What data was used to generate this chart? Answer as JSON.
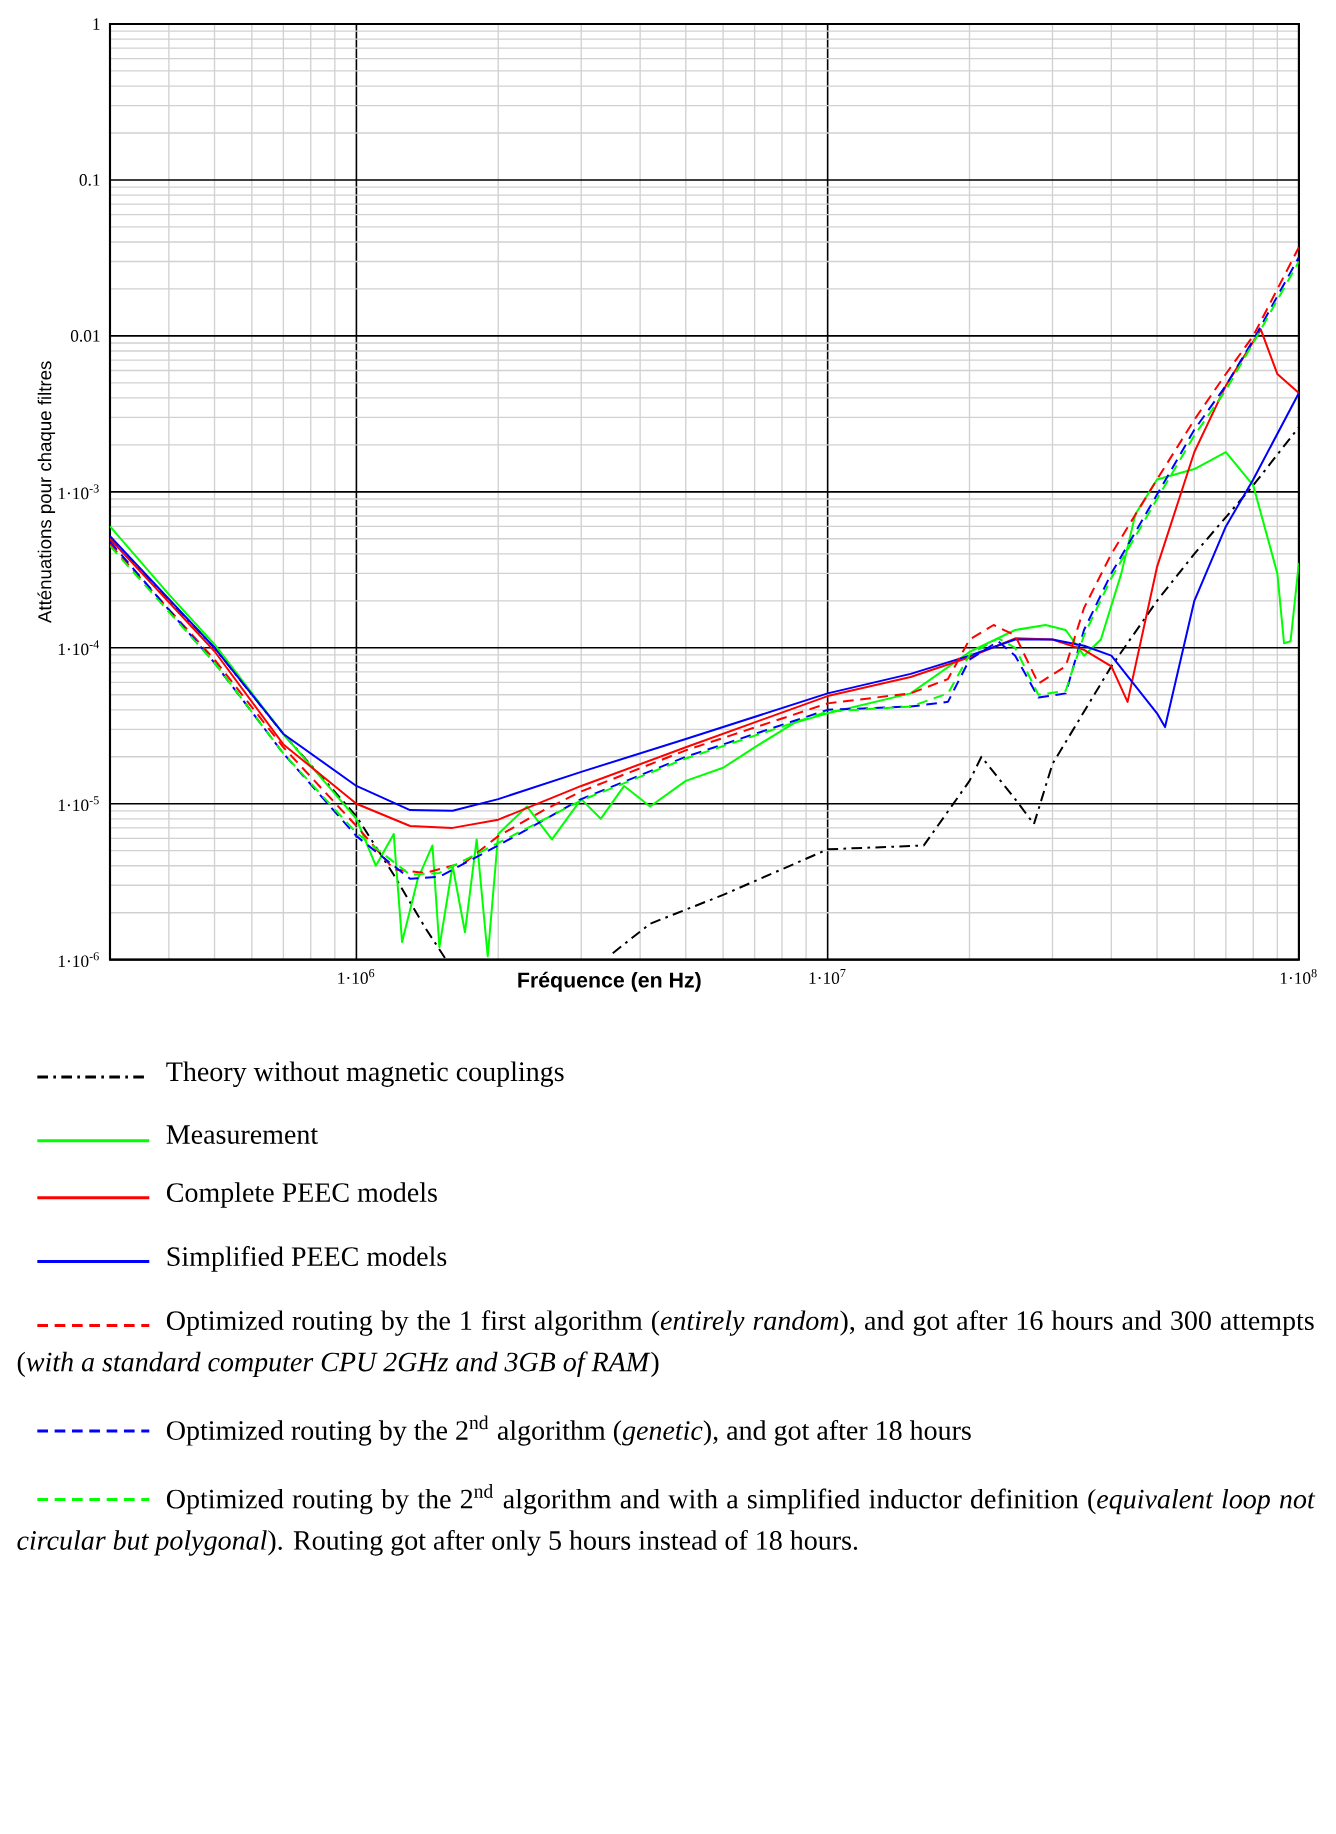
{
  "chart_data": {
    "type": "line",
    "xlabel": "Fréquence (en Hz)",
    "ylabel": "Atténuations pour chaque filtres",
    "log": "xy",
    "grid": true,
    "legend": "bottom",
    "xlim": [
      300000,
      100000000
    ],
    "ylim": [
      1e-06,
      1
    ],
    "xticks": [
      {
        "value": 1000000,
        "label": "1·10$^{6}$"
      },
      {
        "value": 10000000,
        "label": "1·10$^{7}$"
      },
      {
        "value": 100000000,
        "label": "1·10$^{8}$"
      }
    ],
    "yticks": [
      {
        "value": 1e-06,
        "label": "1·10$^{-6}$"
      },
      {
        "value": 1e-05,
        "label": "1·10$^{-5}$"
      },
      {
        "value": 0.0001,
        "label": "1·10$^{-4}$"
      },
      {
        "value": 0.001,
        "label": "1·10$^{-3}$"
      },
      0.01,
      0.1,
      1
    ],
    "series": [
      {
        "name": "Theory without magnetic couplings",
        "color": "#000000",
        "line_style": "dashdot",
        "x": [
          300000,
          500000,
          700000,
          1000000,
          1200000,
          1400000,
          1550000,
          2500000,
          3500000,
          4200000,
          6000000,
          10000000,
          16000000,
          20000000,
          21200000,
          25000000,
          27400000,
          30000000,
          40000000,
          50000000,
          60000000,
          80000000,
          100000000
        ],
        "values": [
          0.0005,
          0.0001,
          2.8e-05,
          8.3e-06,
          3.5e-06,
          1.6e-06,
          1e-06,
          null,
          1.1e-06,
          1.7e-06,
          2.6e-06,
          5.1e-06,
          5.4e-06,
          1.4e-05,
          2e-05,
          1.07e-05,
          7.4e-06,
          1.8e-05,
          7.6e-05,
          0.0002,
          0.0004,
          0.0011,
          0.0026
        ]
      },
      {
        "name": "Measurement",
        "color": "#00ff00",
        "line_style": "solid",
        "x": [
          300000,
          400000,
          500000,
          700000,
          900000,
          1000000,
          1100000,
          1200000,
          1250000,
          1350000,
          1450000,
          1500000,
          1600000,
          1700000,
          1800000,
          1900000,
          2000000,
          2300000,
          2600000,
          3000000,
          3300000,
          3700000,
          4200000,
          5000000,
          6000000,
          7000000,
          8500000,
          10000000,
          15000000,
          20000000,
          25000000,
          29000000,
          32000000,
          35000000,
          38000000,
          42000000,
          45000000,
          50000000,
          60000000,
          70000000,
          80000000,
          90000000,
          93000000,
          96000000,
          100000000
        ],
        "values": [
          0.0006,
          0.00022,
          0.000105,
          2.8e-05,
          1.16e-05,
          8e-06,
          4e-06,
          6.4e-06,
          1.3e-06,
          3.3e-06,
          5.4e-06,
          1.2e-06,
          4e-06,
          1.5e-06,
          5.9e-06,
          1.05e-06,
          6.4e-06,
          9.6e-06,
          5.9e-06,
          1.07e-05,
          8e-06,
          1.3e-05,
          9.6e-06,
          1.4e-05,
          1.7e-05,
          2.3e-05,
          3.3e-05,
          3.8e-05,
          5.1e-05,
          9.4e-05,
          0.00013,
          0.00014,
          0.00013,
          8.9e-05,
          0.000113,
          0.0003,
          0.00072,
          0.0012,
          0.0014,
          0.0018,
          0.0011,
          0.0003,
          0.000107,
          0.00011,
          0.00035
        ]
      },
      {
        "name": "Complete PEEC models",
        "color": "#ff0000",
        "line_style": "solid",
        "x": [
          300000,
          500000,
          700000,
          1000000,
          1300000,
          1600000,
          2000000,
          3000000,
          5000000,
          10000000,
          15000000,
          20000000,
          25000000,
          30000000,
          35000000,
          40000000,
          43300000,
          50000000,
          60000000,
          70000000,
          83000000,
          90000000,
          100000000
        ],
        "values": [
          0.0005,
          9.5e-05,
          2.4e-05,
          1e-05,
          7.2e-06,
          7e-06,
          7.9e-06,
          1.3e-05,
          2.3e-05,
          4.9e-05,
          6.5e-05,
          8.7e-05,
          0.000115,
          0.000113,
          9.7e-05,
          7.6e-05,
          4.5e-05,
          0.00033,
          0.0018,
          0.0048,
          0.011,
          0.0057,
          0.0043
        ]
      },
      {
        "name": "Simplified PEEC models",
        "color": "#0000ff",
        "line_style": "solid",
        "x": [
          300000,
          500000,
          700000,
          1000000,
          1300000,
          1600000,
          2000000,
          3000000,
          5000000,
          10000000,
          15000000,
          20000000,
          25000000,
          30000000,
          35000000,
          40000000,
          50000000,
          52000000,
          60000000,
          70000000,
          80000000,
          100000000
        ],
        "values": [
          0.00052,
          0.0001,
          2.8e-05,
          1.3e-05,
          9.1e-06,
          9e-06,
          1.07e-05,
          1.6e-05,
          2.6e-05,
          5.1e-05,
          6.8e-05,
          8.9e-05,
          0.000113,
          0.000113,
          0.000103,
          8.9e-05,
          3.8e-05,
          3.1e-05,
          0.0002,
          0.0006,
          0.0012,
          0.0043
        ]
      },
      {
        "name": "Optimized routing by the 1 first algorithm (*entirely random*), and got after 16 hours and 300 attempts (*with a standard computer CPU 2GHz and 3GB of RAM*)",
        "color": "#ff0000",
        "line_style": "dashed",
        "x": [
          300000,
          500000,
          700000,
          1000000,
          1200000,
          1400000,
          1700000,
          2000000,
          2500000,
          3000000,
          5000000,
          10000000,
          15000000,
          18000000,
          20000000,
          22500000,
          25000000,
          28000000,
          32000000,
          35000000,
          40000000,
          50000000,
          60000000,
          70000000,
          80000000,
          100000000
        ],
        "values": [
          0.00046,
          8.4e-05,
          2.3e-05,
          7.2e-06,
          3.8e-06,
          3.6e-06,
          4.2e-06,
          6.2e-06,
          9.1e-06,
          1.2e-05,
          2.2e-05,
          4.4e-05,
          5.1e-05,
          6.3e-05,
          0.000113,
          0.00014,
          0.00012,
          5.9e-05,
          7.6e-05,
          0.00018,
          0.0004,
          0.0012,
          0.0029,
          0.0057,
          0.01,
          0.037
        ]
      },
      {
        "name": "Optimized routing by the 2$^{nd}$ algorithm (*genetic*), and got after 18 hours",
        "color": "#0000ff",
        "line_style": "dashed",
        "x": [
          300000,
          500000,
          700000,
          1000000,
          1300000,
          1500000,
          2000000,
          3000000,
          5000000,
          10000000,
          15000000,
          18000000,
          20000000,
          23000000,
          25000000,
          28000000,
          32000000,
          35000000,
          40000000,
          50000000,
          60000000,
          70000000,
          80000000,
          100000000
        ],
        "values": [
          0.00048,
          8e-05,
          2.1e-05,
          6.2e-06,
          3.3e-06,
          3.4e-06,
          5.4e-06,
          1.07e-05,
          2e-05,
          4e-05,
          4.2e-05,
          4.5e-05,
          8.4e-05,
          0.00011,
          8.9e-05,
          4.8e-05,
          5.1e-05,
          0.00013,
          0.0003,
          0.00096,
          0.0025,
          0.0048,
          0.0094,
          0.032
        ]
      },
      {
        "name": "Optimized routing by the 2$^{nd}$ algorithm and with a simplified inductor definition (*equivalent loop not circular but polygonal*). Routing got after only 5 hours instead of 18 hours.",
        "color": "#00ff00",
        "line_style": "dashed",
        "x": [
          300000,
          500000,
          700000,
          1000000,
          1300000,
          1500000,
          2000000,
          3000000,
          5000000,
          10000000,
          15000000,
          18000000,
          20000000,
          23000000,
          25000000,
          28000000,
          32000000,
          35000000,
          40000000,
          50000000,
          60000000,
          70000000,
          80000000,
          100000000
        ],
        "values": [
          0.00045,
          8e-05,
          2.1e-05,
          6.5e-06,
          3.5e-06,
          3.6e-06,
          5.6e-06,
          1.05e-05,
          1.95e-05,
          3.9e-05,
          4.2e-05,
          5.1e-05,
          9e-05,
          0.000115,
          0.0001,
          5e-05,
          5.3e-05,
          0.00012,
          0.00028,
          0.0009,
          0.0023,
          0.0045,
          0.009,
          0.03
        ]
      }
    ]
  }
}
